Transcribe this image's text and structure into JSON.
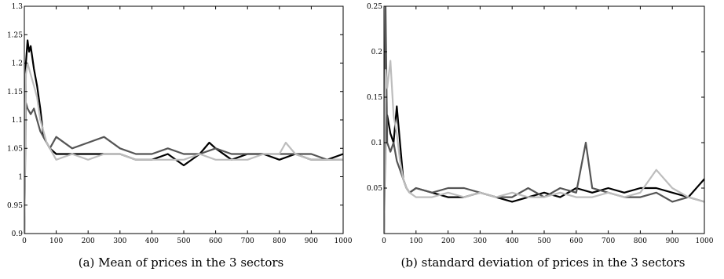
{
  "captions": [
    "(a) Mean of prices in the 3 sectors",
    "(b) standard deviation of prices in the 3 sectors"
  ],
  "chart_data": [
    {
      "type": "line",
      "title": "",
      "xlabel": "",
      "ylabel": "",
      "xlim": [
        0,
        1000
      ],
      "ylim": [
        0.9,
        1.3
      ],
      "xticks": [
        0,
        100,
        200,
        300,
        400,
        500,
        600,
        700,
        800,
        900,
        1000
      ],
      "yticks": [
        0.9,
        0.95,
        1,
        1.05,
        1.1,
        1.15,
        1.2,
        1.25,
        1.3
      ],
      "yticklabels": [
        "0.9",
        "0.95",
        "1",
        "1.05",
        "1.1",
        "1.15",
        "1.2",
        "1.25",
        "1.3"
      ],
      "grid": false,
      "series": [
        {
          "color": "#000000",
          "x": [
            0,
            5,
            10,
            15,
            20,
            30,
            40,
            50,
            60,
            70,
            80,
            100,
            150,
            200,
            250,
            300,
            350,
            400,
            450,
            500,
            550,
            580,
            600,
            650,
            700,
            750,
            800,
            850,
            900,
            950,
            1000
          ],
          "y": [
            0.9,
            1.2,
            1.24,
            1.22,
            1.23,
            1.19,
            1.16,
            1.12,
            1.07,
            1.06,
            1.05,
            1.04,
            1.04,
            1.04,
            1.04,
            1.04,
            1.03,
            1.03,
            1.04,
            1.02,
            1.04,
            1.06,
            1.05,
            1.03,
            1.04,
            1.04,
            1.03,
            1.04,
            1.03,
            1.03,
            1.04
          ]
        },
        {
          "color": "#555555",
          "x": [
            0,
            5,
            10,
            20,
            30,
            40,
            50,
            60,
            70,
            80,
            100,
            150,
            200,
            250,
            300,
            350,
            400,
            450,
            500,
            550,
            600,
            650,
            700,
            750,
            800,
            850,
            900,
            950,
            1000
          ],
          "y": [
            0.9,
            1.13,
            1.12,
            1.11,
            1.12,
            1.1,
            1.08,
            1.07,
            1.06,
            1.05,
            1.07,
            1.05,
            1.06,
            1.07,
            1.05,
            1.04,
            1.04,
            1.05,
            1.04,
            1.04,
            1.05,
            1.04,
            1.04,
            1.04,
            1.04,
            1.04,
            1.04,
            1.03,
            1.03
          ]
        },
        {
          "color": "#bdbdbd",
          "x": [
            0,
            5,
            10,
            20,
            30,
            40,
            50,
            60,
            70,
            80,
            100,
            150,
            200,
            250,
            300,
            350,
            400,
            450,
            500,
            550,
            600,
            650,
            700,
            750,
            800,
            820,
            850,
            900,
            950,
            1000
          ],
          "y": [
            0.9,
            1.18,
            1.2,
            1.18,
            1.16,
            1.14,
            1.1,
            1.08,
            1.06,
            1.05,
            1.03,
            1.04,
            1.03,
            1.04,
            1.04,
            1.03,
            1.03,
            1.03,
            1.03,
            1.04,
            1.03,
            1.03,
            1.03,
            1.04,
            1.04,
            1.06,
            1.04,
            1.03,
            1.03,
            1.03
          ]
        }
      ]
    },
    {
      "type": "line",
      "title": "",
      "xlabel": "",
      "ylabel": "",
      "xlim": [
        0,
        1000
      ],
      "ylim": [
        0,
        0.25
      ],
      "xticks": [
        0,
        100,
        200,
        300,
        400,
        500,
        600,
        700,
        800,
        900,
        1000
      ],
      "yticks": [
        0.05,
        0.1,
        0.15,
        0.2,
        0.25
      ],
      "yticklabels": [
        "0.05",
        "0.1",
        "0.15",
        "0.2",
        "0.25"
      ],
      "grid": false,
      "series": [
        {
          "color": "#000000",
          "x": [
            0,
            5,
            10,
            20,
            30,
            40,
            50,
            60,
            70,
            80,
            100,
            150,
            200,
            250,
            300,
            350,
            400,
            450,
            500,
            550,
            600,
            650,
            700,
            750,
            800,
            850,
            900,
            950,
            1000
          ],
          "y": [
            0.0,
            0.12,
            0.13,
            0.11,
            0.1,
            0.14,
            0.1,
            0.06,
            0.05,
            0.045,
            0.05,
            0.045,
            0.04,
            0.04,
            0.045,
            0.04,
            0.035,
            0.04,
            0.045,
            0.04,
            0.05,
            0.045,
            0.05,
            0.045,
            0.05,
            0.05,
            0.045,
            0.04,
            0.06
          ]
        },
        {
          "color": "#555555",
          "x": [
            0,
            5,
            10,
            20,
            30,
            40,
            50,
            60,
            70,
            80,
            100,
            150,
            200,
            250,
            300,
            350,
            400,
            450,
            500,
            550,
            600,
            630,
            650,
            700,
            750,
            800,
            850,
            900,
            950,
            1000
          ],
          "y": [
            0.0,
            0.25,
            0.1,
            0.09,
            0.1,
            0.08,
            0.07,
            0.06,
            0.05,
            0.045,
            0.05,
            0.045,
            0.05,
            0.05,
            0.045,
            0.04,
            0.04,
            0.05,
            0.04,
            0.05,
            0.045,
            0.1,
            0.05,
            0.045,
            0.04,
            0.04,
            0.045,
            0.035,
            0.04,
            0.035
          ]
        },
        {
          "color": "#bdbdbd",
          "x": [
            0,
            5,
            10,
            20,
            30,
            40,
            50,
            60,
            70,
            80,
            100,
            150,
            200,
            250,
            300,
            350,
            400,
            450,
            500,
            550,
            600,
            650,
            700,
            750,
            800,
            850,
            900,
            950,
            1000
          ],
          "y": [
            0.0,
            0.18,
            0.16,
            0.19,
            0.13,
            0.11,
            0.08,
            0.06,
            0.05,
            0.045,
            0.04,
            0.04,
            0.045,
            0.04,
            0.045,
            0.04,
            0.045,
            0.04,
            0.04,
            0.045,
            0.04,
            0.04,
            0.045,
            0.04,
            0.045,
            0.07,
            0.05,
            0.04,
            0.035
          ]
        }
      ]
    }
  ]
}
